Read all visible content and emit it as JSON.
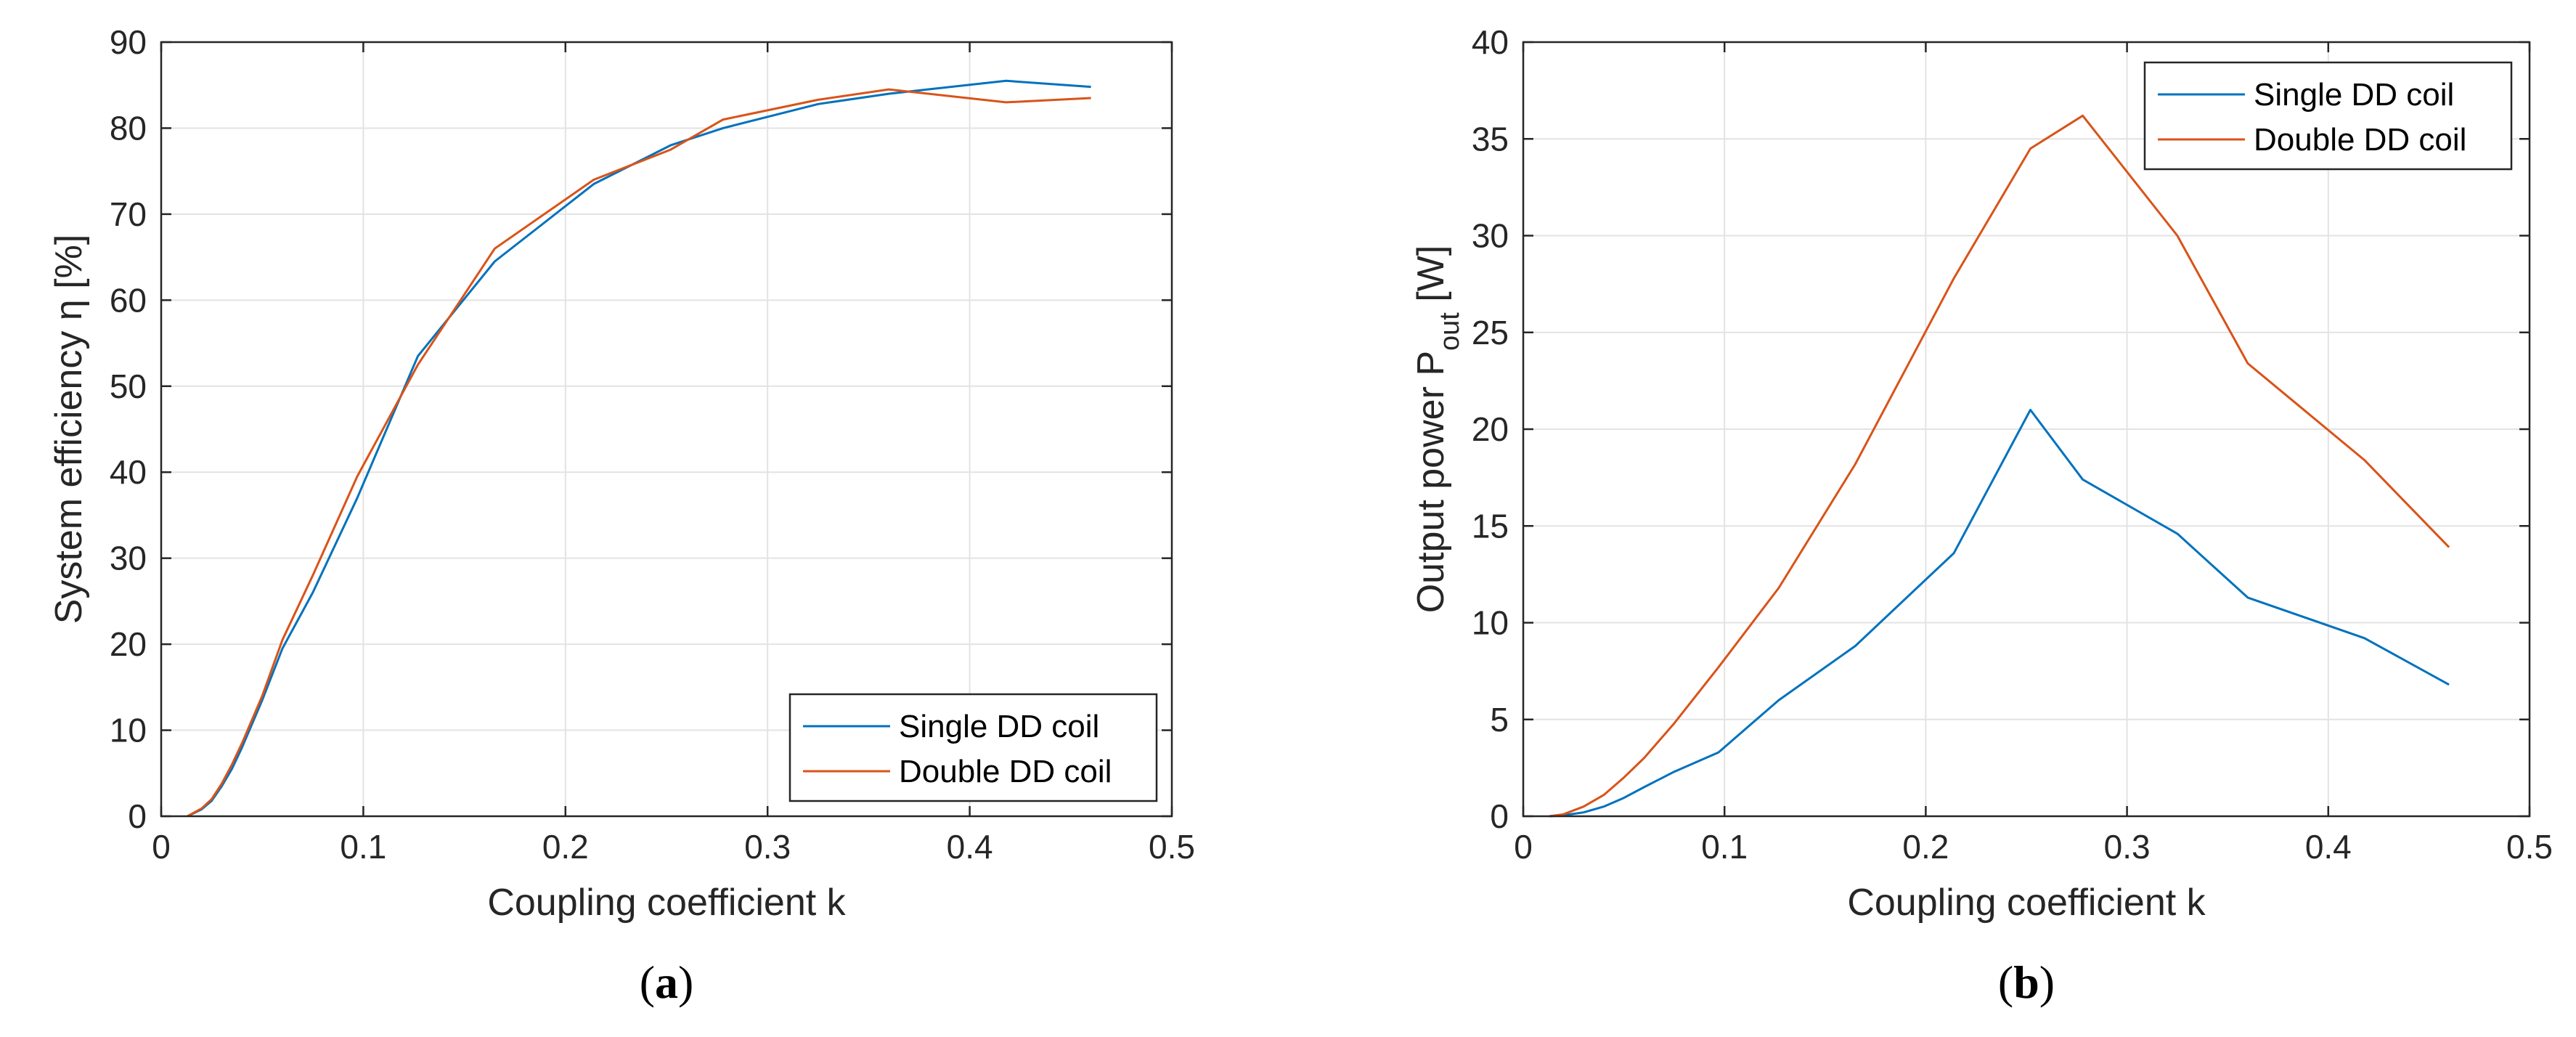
{
  "colors": {
    "series1": "#0072BD",
    "series2": "#D95319",
    "grid": "#E3E3E3",
    "axis": "#262626"
  },
  "chart_data": [
    {
      "type": "line",
      "xlabel": "Coupling coefficient k",
      "ylabel": "System efficiency η [%]",
      "xlim": [
        0,
        0.5
      ],
      "ylim": [
        0,
        90
      ],
      "xticks": [
        "0",
        "0.1",
        "0.2",
        "0.3",
        "0.4",
        "0.5"
      ],
      "yticks": [
        "0",
        "10",
        "20",
        "30",
        "40",
        "50",
        "60",
        "70",
        "80",
        "90"
      ],
      "grid": true,
      "legend_position": "bottom-right",
      "caption_open": "(",
      "caption_letter": "a",
      "caption_close": ")",
      "series": [
        {
          "name": "Single DD coil",
          "x": [
            0.013,
            0.02,
            0.025,
            0.03,
            0.035,
            0.04,
            0.05,
            0.06,
            0.075,
            0.097,
            0.127,
            0.165,
            0.214,
            0.252,
            0.278,
            0.325,
            0.36,
            0.418,
            0.46
          ],
          "y": [
            0,
            0.8,
            1.8,
            3.5,
            5.5,
            8,
            13.5,
            19.5,
            26,
            37,
            53.5,
            64.5,
            73.5,
            78,
            80,
            82.8,
            84,
            85.5,
            84.8
          ]
        },
        {
          "name": "Double DD coil",
          "x": [
            0.013,
            0.02,
            0.025,
            0.03,
            0.035,
            0.04,
            0.05,
            0.06,
            0.075,
            0.097,
            0.127,
            0.165,
            0.214,
            0.252,
            0.278,
            0.325,
            0.36,
            0.418,
            0.46
          ],
          "y": [
            0,
            0.9,
            2,
            3.8,
            6,
            8.5,
            14,
            20.5,
            28,
            39.5,
            52.5,
            66,
            74,
            77.5,
            81,
            83.3,
            84.5,
            83,
            83.5
          ]
        }
      ]
    },
    {
      "type": "line",
      "xlabel": "Coupling coefficient k",
      "ylabel_main": "Output power P",
      "ylabel_sub": "out",
      "ylabel_unit": " [W]",
      "xlim": [
        0,
        0.5
      ],
      "ylim": [
        0,
        40
      ],
      "xticks": [
        "0",
        "0.1",
        "0.2",
        "0.3",
        "0.4",
        "0.5"
      ],
      "yticks": [
        "0",
        "5",
        "10",
        "15",
        "20",
        "25",
        "30",
        "35",
        "40"
      ],
      "grid": true,
      "legend_position": "top-right",
      "caption_open": "(",
      "caption_letter": "b",
      "caption_close": ")",
      "series": [
        {
          "name": "Single DD coil",
          "x": [
            0.013,
            0.02,
            0.03,
            0.04,
            0.05,
            0.06,
            0.075,
            0.097,
            0.127,
            0.165,
            0.214,
            0.252,
            0.278,
            0.325,
            0.36,
            0.418,
            0.46
          ],
          "y": [
            0,
            0.05,
            0.2,
            0.5,
            0.95,
            1.5,
            2.3,
            3.3,
            6,
            8.8,
            13.6,
            21,
            17.4,
            14.6,
            11.3,
            9.2,
            6.8
          ]
        },
        {
          "name": "Double DD coil",
          "x": [
            0.013,
            0.02,
            0.03,
            0.04,
            0.05,
            0.06,
            0.075,
            0.097,
            0.127,
            0.165,
            0.214,
            0.252,
            0.278,
            0.325,
            0.36,
            0.418,
            0.46
          ],
          "y": [
            0,
            0.1,
            0.5,
            1.1,
            2,
            3,
            4.8,
            7.7,
            11.8,
            18.2,
            27.8,
            34.5,
            36.2,
            30,
            23.4,
            18.4,
            13.9
          ]
        }
      ]
    }
  ]
}
